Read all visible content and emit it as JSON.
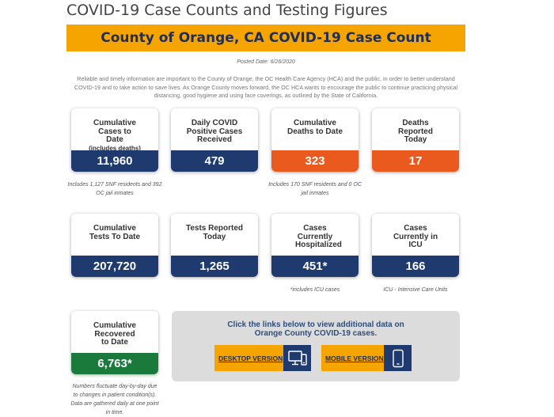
{
  "page": {
    "title": "COVID-19 Case Counts and Testing Figures",
    "banner": "County of Orange, CA COVID-19 Case Count",
    "posted_date": "Posted Date: 6/26/2020",
    "intro": "Reliable and timely information are important to the County of Orange, the OC Health Care Agency (HCA) and the public, in order to better understand COVID-19 and to take action to save lives. As Orange County moves forward, the OC HCA wants to encourage the public to continue practicing physical distancing, good hygiene and using face coverings, as outlined by the State of California."
  },
  "cards": {
    "cumulative_cases": {
      "label": "Cumulative Cases to Date",
      "sub": "(includes deaths)",
      "value": "11,960",
      "note": "Includes 1,127 SNF residents and 392 OC jail inmates"
    },
    "daily_positive": {
      "label": "Daily COVID Positive Cases Received",
      "value": "479"
    },
    "cumulative_deaths": {
      "label": "Cumulative Deaths to Date",
      "value": "323",
      "note": "Includes 170 SNF residents and 0 OC jail inmates"
    },
    "deaths_today": {
      "label": "Deaths Reported Today",
      "value": "17"
    },
    "cumulative_tests": {
      "label": "Cumulative Tests To Date",
      "value": "207,720"
    },
    "tests_today": {
      "label": "Tests Reported Today",
      "value": "1,265"
    },
    "hospitalized": {
      "label": "Cases Currently Hospitalized",
      "value": "451*",
      "note": "*includes ICU cases"
    },
    "icu": {
      "label": "Cases Currently in ICU",
      "value": "166",
      "note": "ICU - Intensive Care Units"
    },
    "recovered": {
      "label": "Cumulative Recovered to Date",
      "value": "6,763*",
      "note": "Numbers fluctuate day-by-day due to changes in patient condition(s). Data are gathered daily at one point in time."
    }
  },
  "links": {
    "text": "Click the links below to view additional data on Orange County COVID-19 cases.",
    "desktop_label": "DESKTOP VERSION",
    "desktop_icon": "desktop-icon",
    "mobile_label": "MOBILE VERSION",
    "mobile_icon": "mobile-icon"
  },
  "colors": {
    "navy": "#1e3a6e",
    "orange": "#ea5a1e",
    "green": "#1a7a3c",
    "gold": "#f6a500"
  }
}
